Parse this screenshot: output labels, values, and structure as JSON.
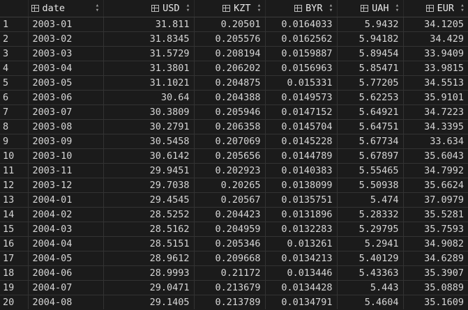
{
  "columns": [
    {
      "key": "date",
      "label": "date",
      "sort_icon": "sort-arrows-icon",
      "icon": "table-column-icon"
    },
    {
      "key": "USD",
      "label": "USD",
      "sort_icon": "sort-arrows-icon",
      "icon": "table-column-icon"
    },
    {
      "key": "KZT",
      "label": "KZT",
      "sort_icon": "sort-arrows-icon",
      "icon": "table-column-icon"
    },
    {
      "key": "BYR",
      "label": "BYR",
      "sort_icon": "sort-arrows-icon",
      "icon": "table-column-icon"
    },
    {
      "key": "UAH",
      "label": "UAH",
      "sort_icon": "sort-arrows-icon",
      "icon": "table-column-icon"
    },
    {
      "key": "EUR",
      "label": "EUR",
      "sort_icon": "sort-arrows-icon",
      "icon": "table-column-icon"
    }
  ],
  "rows": [
    {
      "idx": "1",
      "date": "2003-01",
      "USD": "31.811",
      "KZT": "0.20501",
      "BYR": "0.0164033",
      "UAH": "5.9432",
      "EUR": "34.1205"
    },
    {
      "idx": "2",
      "date": "2003-02",
      "USD": "31.8345",
      "KZT": "0.205576",
      "BYR": "0.0162562",
      "UAH": "5.94182",
      "EUR": "34.429"
    },
    {
      "idx": "3",
      "date": "2003-03",
      "USD": "31.5729",
      "KZT": "0.208194",
      "BYR": "0.0159887",
      "UAH": "5.89454",
      "EUR": "33.9409"
    },
    {
      "idx": "4",
      "date": "2003-04",
      "USD": "31.3801",
      "KZT": "0.206202",
      "BYR": "0.0156963",
      "UAH": "5.85471",
      "EUR": "33.9815"
    },
    {
      "idx": "5",
      "date": "2003-05",
      "USD": "31.1021",
      "KZT": "0.204875",
      "BYR": "0.015331",
      "UAH": "5.77205",
      "EUR": "34.5513"
    },
    {
      "idx": "6",
      "date": "2003-06",
      "USD": "30.64",
      "KZT": "0.204388",
      "BYR": "0.0149573",
      "UAH": "5.62253",
      "EUR": "35.9101"
    },
    {
      "idx": "7",
      "date": "2003-07",
      "USD": "30.3809",
      "KZT": "0.205946",
      "BYR": "0.0147152",
      "UAH": "5.64921",
      "EUR": "34.7223"
    },
    {
      "idx": "8",
      "date": "2003-08",
      "USD": "30.2791",
      "KZT": "0.206358",
      "BYR": "0.0145704",
      "UAH": "5.64751",
      "EUR": "34.3395"
    },
    {
      "idx": "9",
      "date": "2003-09",
      "USD": "30.5458",
      "KZT": "0.207069",
      "BYR": "0.0145228",
      "UAH": "5.67734",
      "EUR": "33.634"
    },
    {
      "idx": "10",
      "date": "2003-10",
      "USD": "30.6142",
      "KZT": "0.205656",
      "BYR": "0.0144789",
      "UAH": "5.67897",
      "EUR": "35.6043"
    },
    {
      "idx": "11",
      "date": "2003-11",
      "USD": "29.9451",
      "KZT": "0.202923",
      "BYR": "0.0140383",
      "UAH": "5.55465",
      "EUR": "34.7992"
    },
    {
      "idx": "12",
      "date": "2003-12",
      "USD": "29.7038",
      "KZT": "0.20265",
      "BYR": "0.0138099",
      "UAH": "5.50938",
      "EUR": "35.6624"
    },
    {
      "idx": "13",
      "date": "2004-01",
      "USD": "29.4545",
      "KZT": "0.20567",
      "BYR": "0.0135751",
      "UAH": "5.474",
      "EUR": "37.0979"
    },
    {
      "idx": "14",
      "date": "2004-02",
      "USD": "28.5252",
      "KZT": "0.204423",
      "BYR": "0.0131896",
      "UAH": "5.28332",
      "EUR": "35.5281"
    },
    {
      "idx": "15",
      "date": "2004-03",
      "USD": "28.5162",
      "KZT": "0.204959",
      "BYR": "0.0132283",
      "UAH": "5.29795",
      "EUR": "35.7593"
    },
    {
      "idx": "16",
      "date": "2004-04",
      "USD": "28.5151",
      "KZT": "0.205346",
      "BYR": "0.013261",
      "UAH": "5.2941",
      "EUR": "34.9082"
    },
    {
      "idx": "17",
      "date": "2004-05",
      "USD": "28.9612",
      "KZT": "0.209668",
      "BYR": "0.0134213",
      "UAH": "5.40129",
      "EUR": "34.6289"
    },
    {
      "idx": "18",
      "date": "2004-06",
      "USD": "28.9993",
      "KZT": "0.21172",
      "BYR": "0.013446",
      "UAH": "5.43363",
      "EUR": "35.3907"
    },
    {
      "idx": "19",
      "date": "2004-07",
      "USD": "29.0471",
      "KZT": "0.213679",
      "BYR": "0.0134428",
      "UAH": "5.443",
      "EUR": "35.0889"
    },
    {
      "idx": "20",
      "date": "2004-08",
      "USD": "29.1405",
      "KZT": "0.213789",
      "BYR": "0.0134791",
      "UAH": "5.4604",
      "EUR": "35.1609"
    }
  ]
}
